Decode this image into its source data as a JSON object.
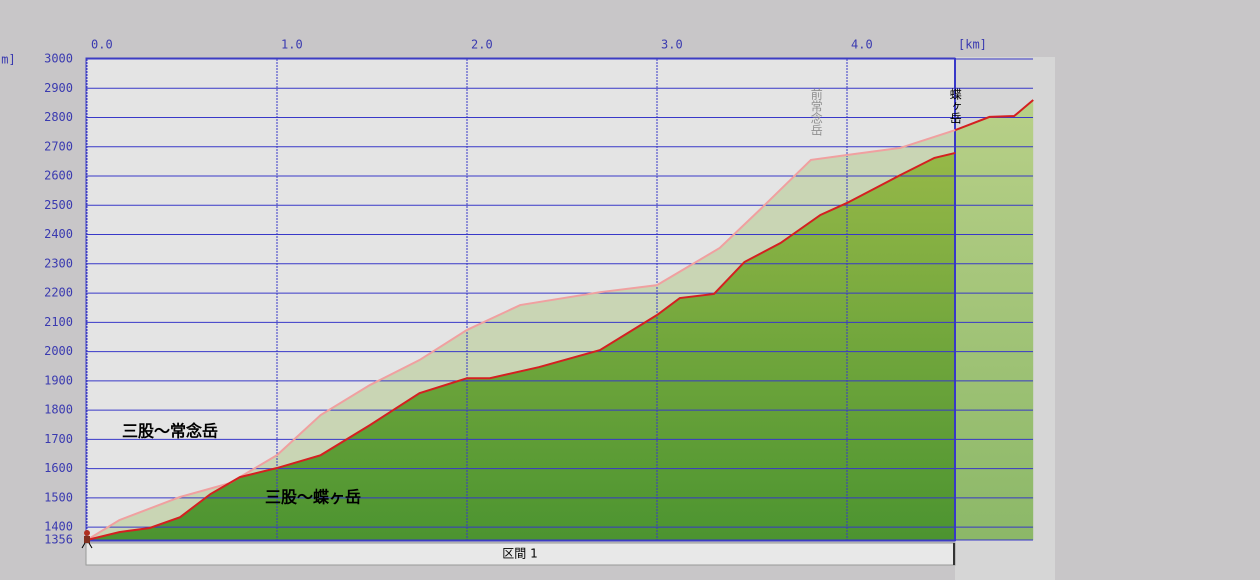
{
  "chart_data": {
    "type": "area",
    "y_unit": "[m]",
    "x_unit": "[km]",
    "section_label": "区間 1",
    "xlim": [
      0,
      4.57
    ],
    "ylim": [
      1356,
      3000
    ],
    "xticks": [
      {
        "value": 0,
        "label": "0.0"
      },
      {
        "value": 1,
        "label": "1.0"
      },
      {
        "value": 2,
        "label": "2.0"
      },
      {
        "value": 3,
        "label": "3.0"
      },
      {
        "value": 4,
        "label": "4.0"
      }
    ],
    "yticks": [
      1356,
      1400,
      1500,
      1600,
      1700,
      1800,
      1900,
      2000,
      2100,
      2200,
      2300,
      2400,
      2500,
      2600,
      2700,
      2800,
      2900,
      3000
    ],
    "grid": true,
    "series": [
      {
        "name": "三股～常念岳",
        "color": "#f0a0a0",
        "x": [
          0,
          0.17,
          0.49,
          0.75,
          1.0,
          1.23,
          1.49,
          1.75,
          2.0,
          2.28,
          2.7,
          3.0,
          3.33,
          3.54,
          3.81,
          4.0,
          4.28,
          4.57
        ],
        "values": [
          1356,
          1424,
          1503,
          1550,
          1646,
          1783,
          1886,
          1971,
          2074,
          2159,
          2203,
          2227,
          2354,
          2484,
          2655,
          2672,
          2696,
          2757
        ]
      },
      {
        "name": "三股～蝶ヶ岳",
        "color": "#d42020",
        "x": [
          0,
          0.17,
          0.33,
          0.49,
          0.65,
          0.805,
          1.0,
          1.23,
          1.49,
          1.75,
          2.0,
          2.12,
          2.38,
          2.7,
          3.0,
          3.12,
          3.3,
          3.46,
          3.65,
          3.86,
          4.0,
          4.28,
          4.46,
          4.57
        ],
        "values": [
          1356,
          1383,
          1397,
          1434,
          1513,
          1571,
          1602,
          1646,
          1749,
          1858,
          1909,
          1909,
          1947,
          2005,
          2125,
          2183,
          2197,
          2306,
          2371,
          2467,
          2508,
          2603,
          2662,
          2679
        ]
      }
    ],
    "next_section": {
      "color": "#d42020",
      "x": [
        4.57,
        4.75,
        4.88,
        4.98
      ],
      "values": [
        2757,
        2802,
        2805,
        2860
      ]
    },
    "annotations": [
      {
        "text": "前常念岳",
        "x": 3.87
      },
      {
        "text": "蝶ヶ岳",
        "x": 4.57
      }
    ]
  }
}
